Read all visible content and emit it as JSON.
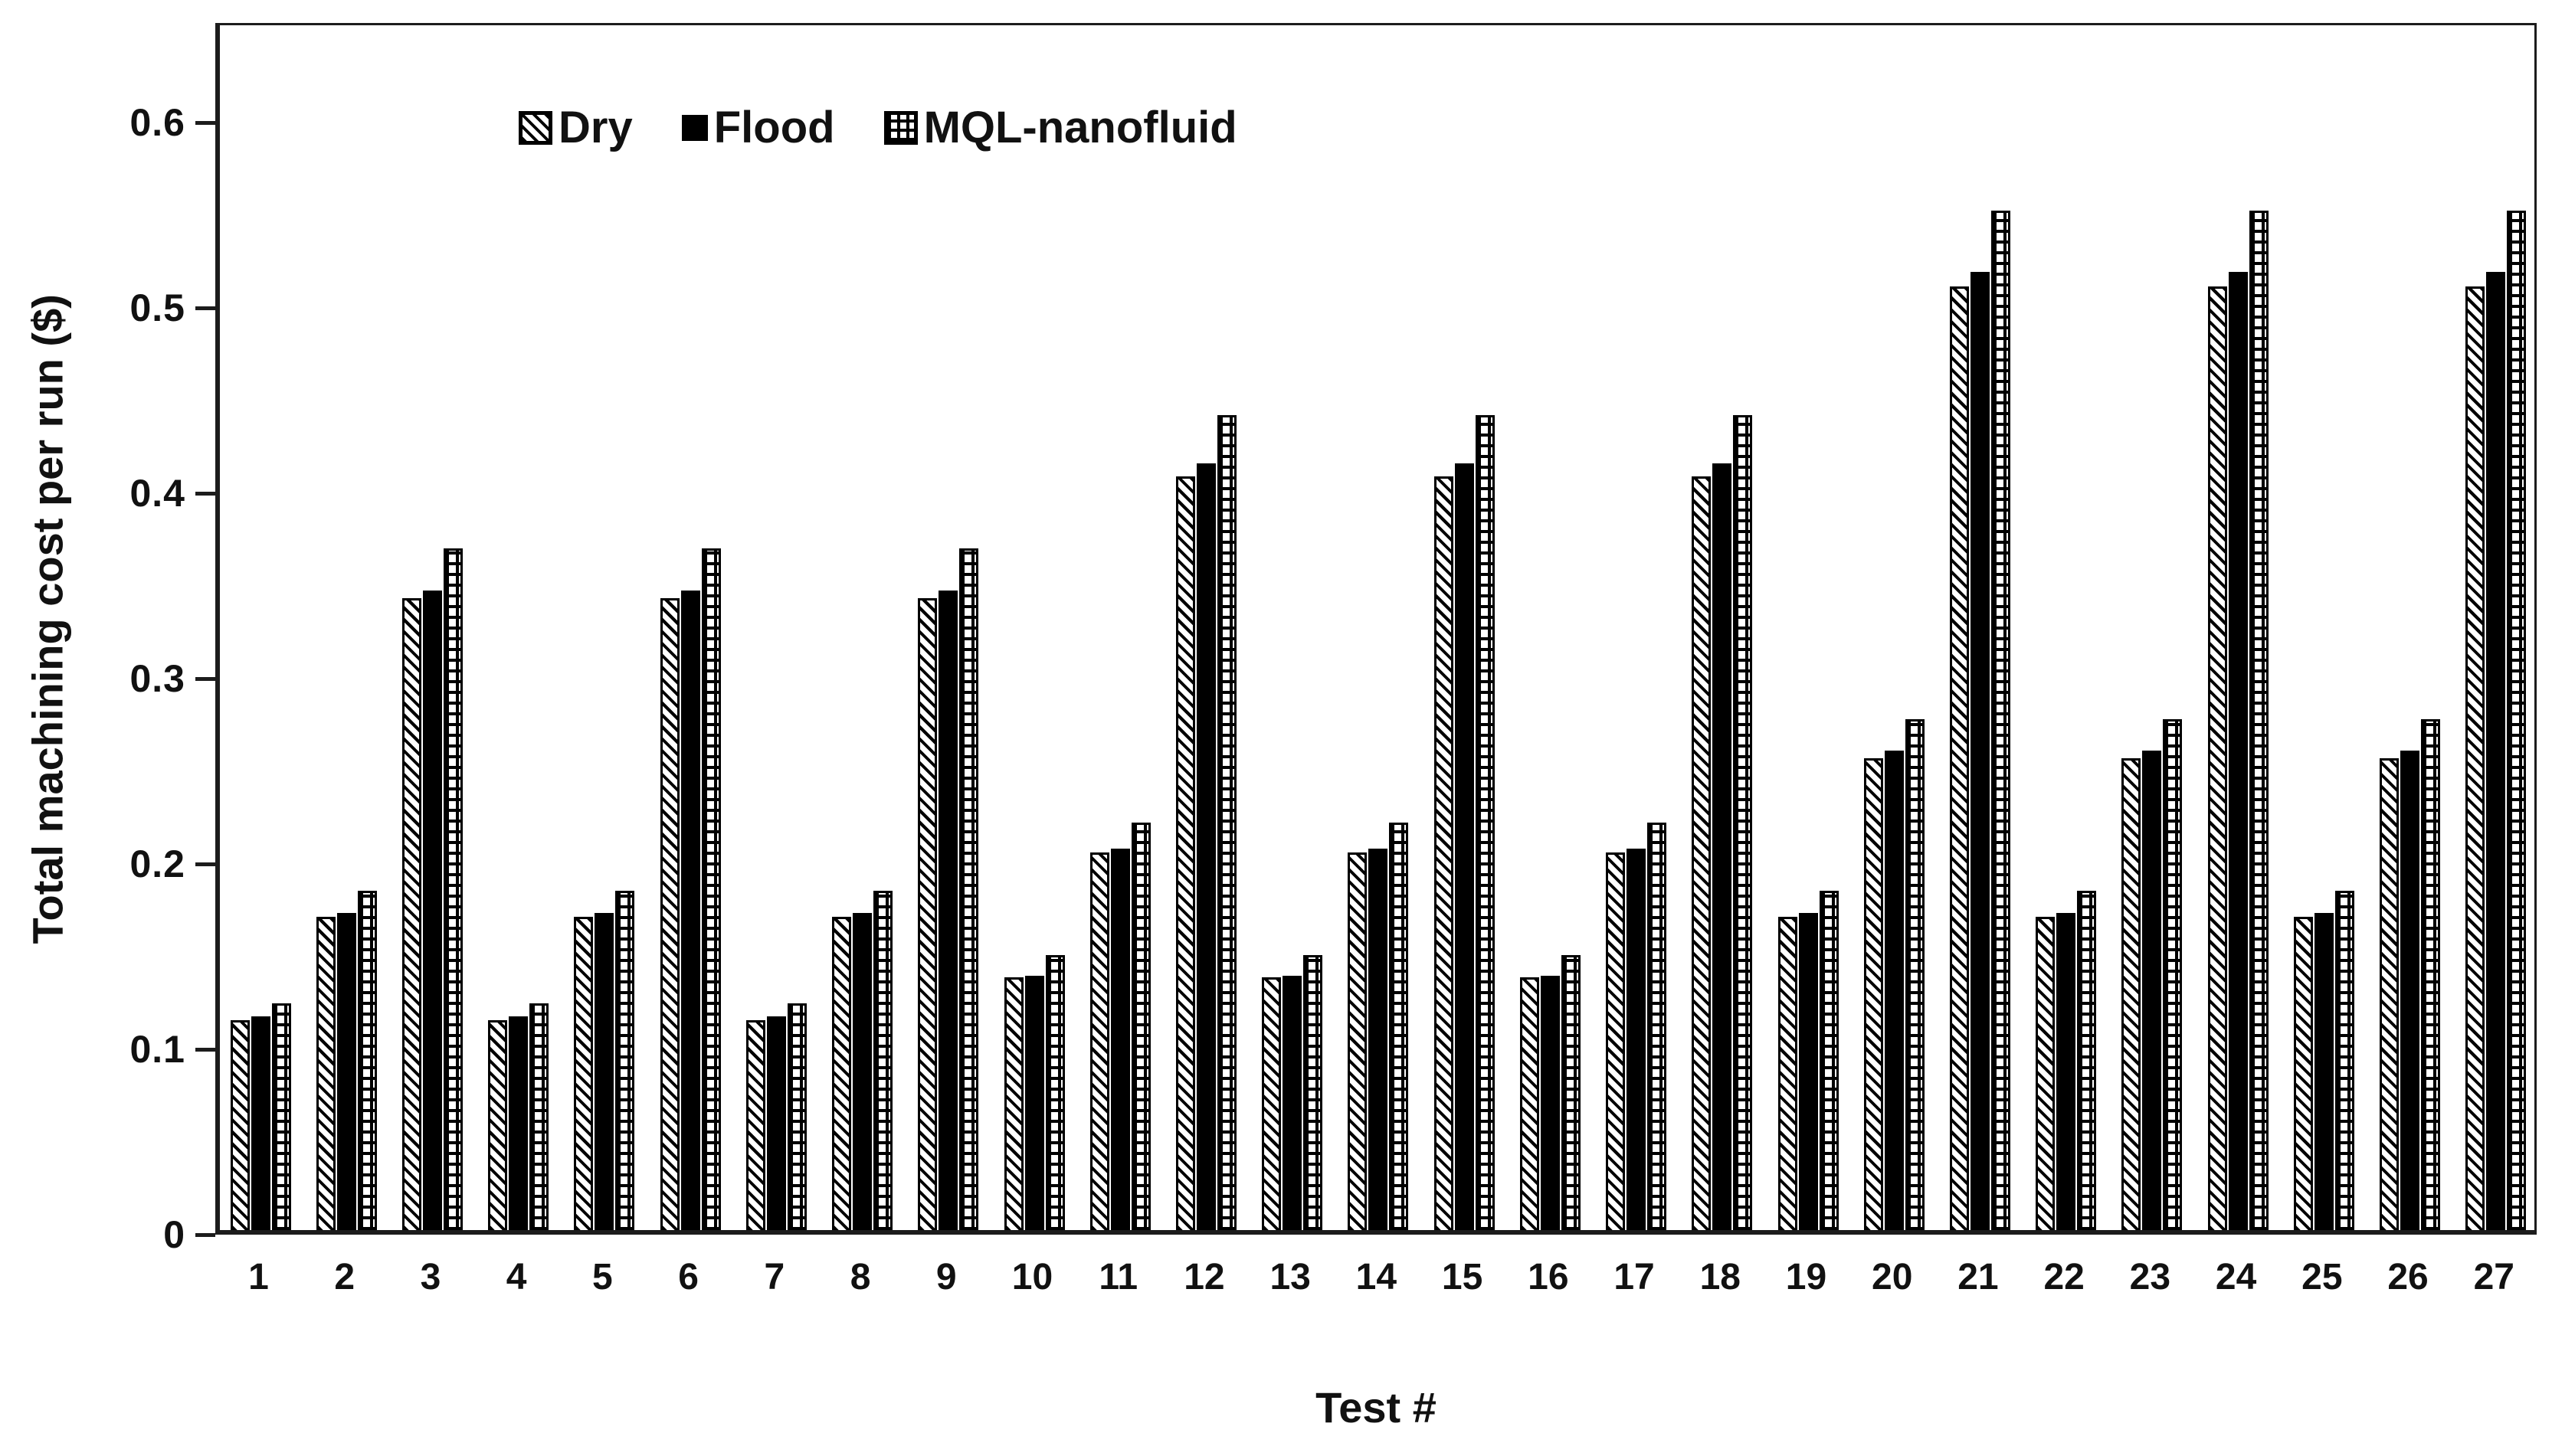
{
  "chart_data": {
    "type": "bar",
    "title": "",
    "xlabel": "Test #",
    "ylabel": "Total machining cost per run ($)",
    "categories": [
      "1",
      "2",
      "3",
      "4",
      "5",
      "6",
      "7",
      "8",
      "9",
      "10",
      "11",
      "12",
      "13",
      "14",
      "15",
      "16",
      "17",
      "18",
      "19",
      "20",
      "21",
      "22",
      "23",
      "24",
      "25",
      "26",
      "27"
    ],
    "series": [
      {
        "name": "Dry",
        "pattern": "diagonal-hatch",
        "values": [
          0.114,
          0.17,
          0.343,
          0.114,
          0.17,
          0.343,
          0.114,
          0.17,
          0.343,
          0.137,
          0.205,
          0.409,
          0.137,
          0.205,
          0.409,
          0.137,
          0.205,
          0.409,
          0.17,
          0.256,
          0.512,
          0.17,
          0.256,
          0.512,
          0.17,
          0.256,
          0.512
        ]
      },
      {
        "name": "Flood",
        "pattern": "solid-black",
        "values": [
          0.116,
          0.172,
          0.347,
          0.116,
          0.172,
          0.347,
          0.116,
          0.172,
          0.347,
          0.138,
          0.207,
          0.416,
          0.138,
          0.207,
          0.416,
          0.138,
          0.207,
          0.416,
          0.172,
          0.26,
          0.52,
          0.172,
          0.26,
          0.52,
          0.172,
          0.26,
          0.52
        ]
      },
      {
        "name": "MQL-nanofluid",
        "pattern": "grid",
        "values": [
          0.123,
          0.184,
          0.37,
          0.123,
          0.184,
          0.37,
          0.123,
          0.184,
          0.37,
          0.149,
          0.221,
          0.442,
          0.149,
          0.221,
          0.442,
          0.149,
          0.221,
          0.442,
          0.184,
          0.277,
          0.553,
          0.184,
          0.277,
          0.553,
          0.184,
          0.277,
          0.553
        ]
      }
    ],
    "ylim": [
      0,
      0.6
    ],
    "y_axis_display_max": 0.6537,
    "yticks": [
      "0",
      "0.1",
      "0.2",
      "0.3",
      "0.4",
      "0.5",
      "0.6"
    ],
    "grid": false,
    "legend_position": "top-left-inside",
    "colors": {
      "foreground": "#000000",
      "background": "#ffffff",
      "axis": "#1c1c1c"
    }
  }
}
